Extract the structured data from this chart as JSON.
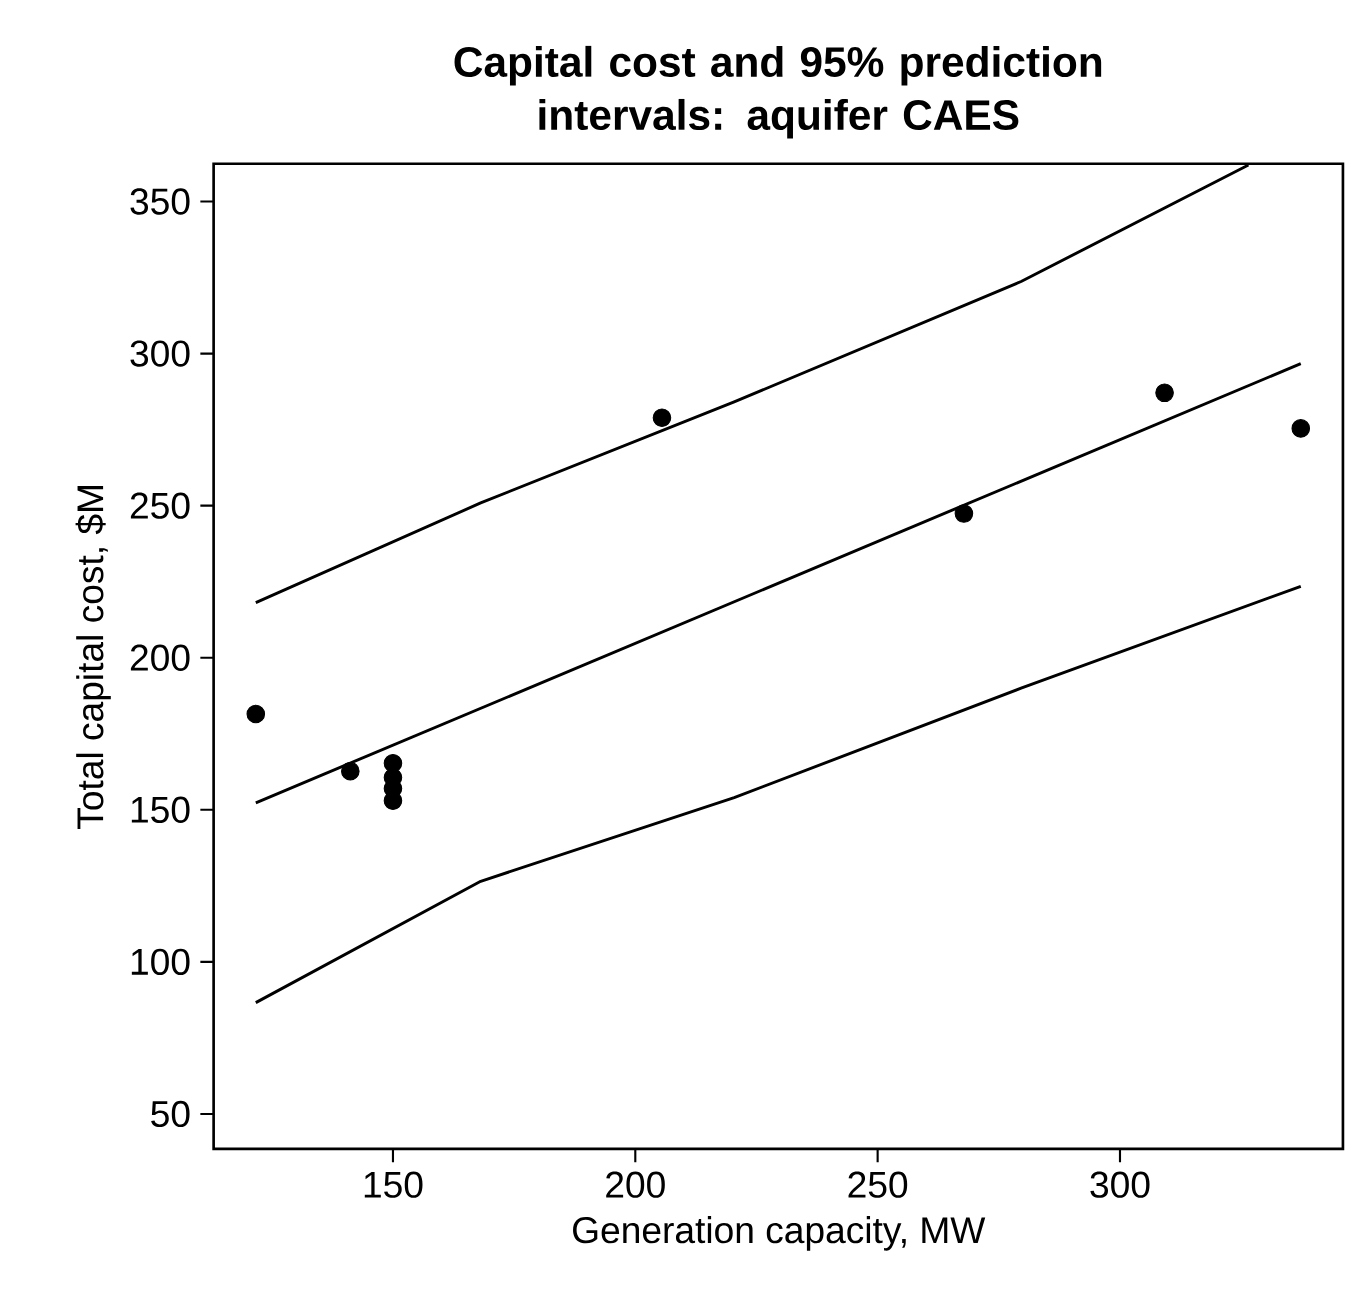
{
  "chart_data": {
    "type": "scatter",
    "title": "Capital cost and 95% prediction intervals: aquifer CAES",
    "xlabel": "Generation capacity, MW",
    "ylabel": "Total capital cost, $M",
    "xlim": [
      113,
      346
    ],
    "ylim": [
      38.5,
      362.4
    ],
    "xticks": [
      150,
      200,
      250,
      300
    ],
    "yticks": [
      50,
      100,
      150,
      200,
      250,
      300,
      350
    ],
    "grid": false,
    "series": [
      {
        "marker": "circle",
        "color": "#000000",
        "x": [
          121.7,
          141.2,
          150,
          150,
          150,
          150,
          205.5,
          267.8,
          309.2,
          337.3
        ],
        "values": [
          181.5,
          162.7,
          165.3,
          160.6,
          157,
          153,
          278.9,
          247.4,
          287.1,
          275.4
        ]
      },
      {
        "type": "line",
        "marker": "none",
        "line_style": "solid",
        "color": "#000000",
        "x": [
          121.7,
          337.3
        ],
        "values": [
          152.3,
          296.7
        ]
      },
      {
        "type": "line",
        "marker": "none",
        "line_style": "solid",
        "color": "#000000",
        "x": [
          121.7,
          168.1,
          220.4,
          279.6,
          326.5
        ],
        "values": [
          218.1,
          250.9,
          284.1,
          323.7,
          362
        ]
      },
      {
        "type": "line",
        "marker": "none",
        "line_style": "solid",
        "color": "#000000",
        "x": [
          121.7,
          168.1,
          220.4,
          279.6,
          337.3
        ],
        "values": [
          86.6,
          126.5,
          154,
          190,
          223.5
        ]
      }
    ]
  }
}
